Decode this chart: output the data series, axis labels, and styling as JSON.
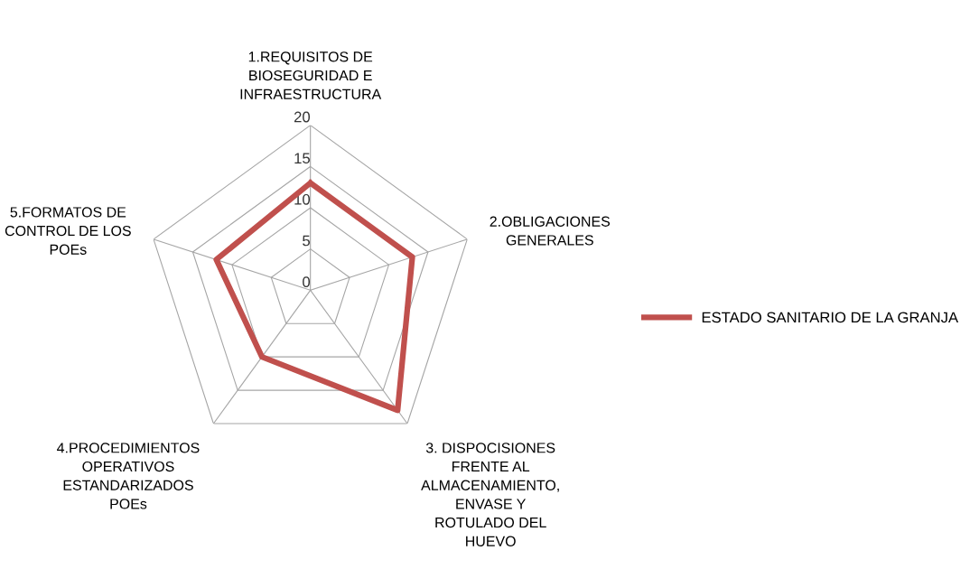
{
  "chart_data": {
    "type": "radar",
    "categories": [
      "1.REQUISITOS DE\nBIOSEGURIDAD E\nINFRAESTRUCTURA",
      "2.OBLIGACIONES\nGENERALES",
      "3. DISPOCISIONES\nFRENTE AL\nALMACENAMIENTO,\nENVASE Y\nROTULADO DEL\nHUEVO",
      "4.PROCEDIMIENTOS\nOPERATIVOS\nESTANDARIZADOS\nPOEs",
      "5.FORMATOS DE\nCONTROL DE LOS\nPOEs"
    ],
    "series": [
      {
        "name": "ESTADO SANITARIO DE LA GRANJA",
        "color": "#c0504d",
        "values": [
          13,
          13,
          18,
          10,
          12
        ]
      }
    ],
    "ylim": [
      0,
      20
    ],
    "yticks": [
      0,
      5,
      10,
      15,
      20
    ],
    "grid": true,
    "legend": "right",
    "marker": "none"
  }
}
